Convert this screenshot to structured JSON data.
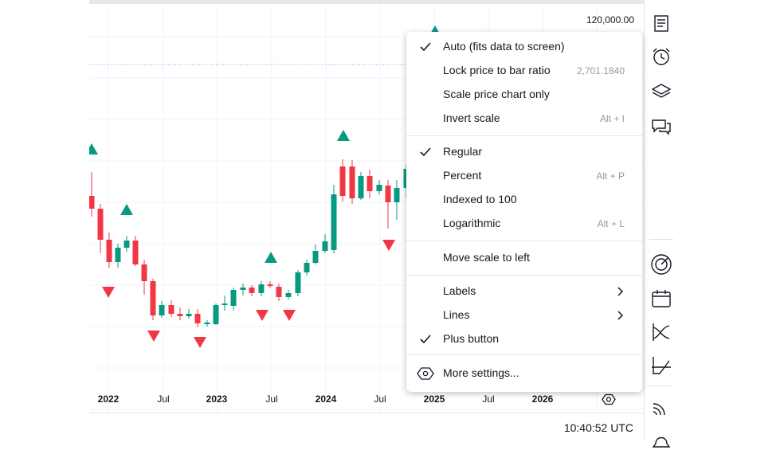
{
  "chart": {
    "price_label": "120,000.00",
    "time_ticks": [
      {
        "label": "2022",
        "bold": true
      },
      {
        "label": "Jul",
        "bold": false
      },
      {
        "label": "2023",
        "bold": true
      },
      {
        "label": "Jul",
        "bold": false
      },
      {
        "label": "2024",
        "bold": true
      },
      {
        "label": "Jul",
        "bold": false
      },
      {
        "label": "2025",
        "bold": true
      },
      {
        "label": "Jul",
        "bold": false
      },
      {
        "label": "2026",
        "bold": true
      }
    ],
    "colors": {
      "up": "#089981",
      "down": "#f23645",
      "grid": "#f0f3fa",
      "price_line": "#2962ff"
    }
  },
  "clock": "10:40:52 UTC",
  "menu": {
    "items": [
      {
        "label": "Auto (fits data to screen)",
        "checked": true,
        "hint": ""
      },
      {
        "label": "Lock price to bar ratio",
        "checked": false,
        "hint": "2,701.1840"
      },
      {
        "label": "Scale price chart only",
        "checked": false,
        "hint": ""
      },
      {
        "label": "Invert scale",
        "checked": false,
        "hint": "Alt + I"
      },
      {
        "label": "Regular",
        "checked": true,
        "hint": ""
      },
      {
        "label": "Percent",
        "checked": false,
        "hint": "Alt + P"
      },
      {
        "label": "Indexed to 100",
        "checked": false,
        "hint": ""
      },
      {
        "label": "Logarithmic",
        "checked": false,
        "hint": "Alt + L"
      },
      {
        "label": "Move scale to left",
        "checked": false,
        "hint": ""
      },
      {
        "label": "Labels",
        "checked": false,
        "hint": ""
      },
      {
        "label": "Lines",
        "checked": false,
        "hint": ""
      },
      {
        "label": "Plus button",
        "checked": true,
        "hint": ""
      },
      {
        "label": "More settings...",
        "checked": false,
        "hint": ""
      }
    ]
  },
  "toolbar_icons": [
    "watchlist-icon",
    "alarm-clock-icon",
    "layers-icon",
    "chat-icon",
    "target-icon",
    "calendar-icon",
    "crossover-icon",
    "chart-line-icon",
    "signal-icon",
    "notification-icon"
  ]
}
